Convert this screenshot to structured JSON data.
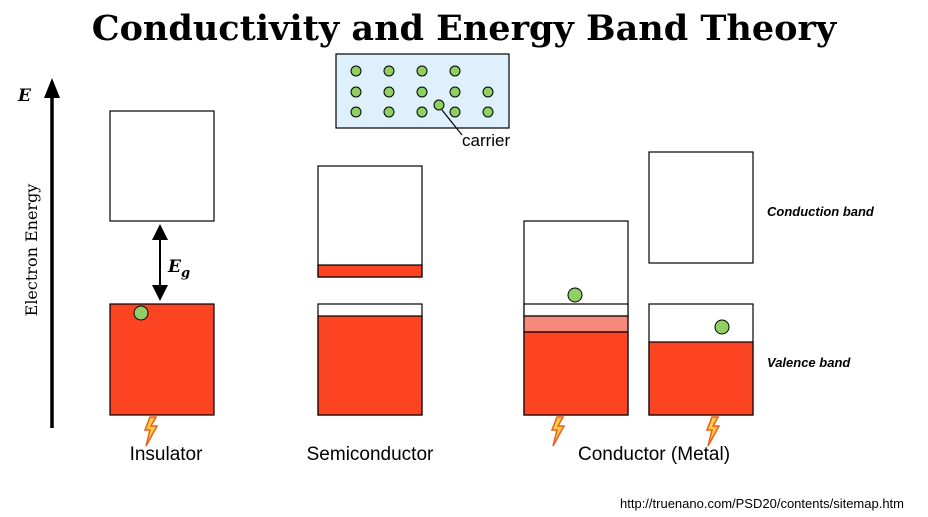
{
  "title": "Conductivity and Energy Band Theory",
  "axis": {
    "e_label": "E",
    "y_label": "Electron Energy"
  },
  "gap_label": {
    "main": "E",
    "sub": "g"
  },
  "carrier_label": "carrier",
  "band_labels": {
    "conduction": "Conduction band",
    "valence": "Valence band"
  },
  "materials": {
    "insulator": "Insulator",
    "semiconductor": "Semiconductor",
    "conductor": "Conductor (Metal)"
  },
  "source_url": "http://truenano.com/PSD20/contents/sitemap.htm",
  "colors": {
    "band_fill": "#fc4422",
    "band_light": "#f7897a",
    "carrier": "#8fcf63",
    "inset_bg": "#def0fb"
  }
}
